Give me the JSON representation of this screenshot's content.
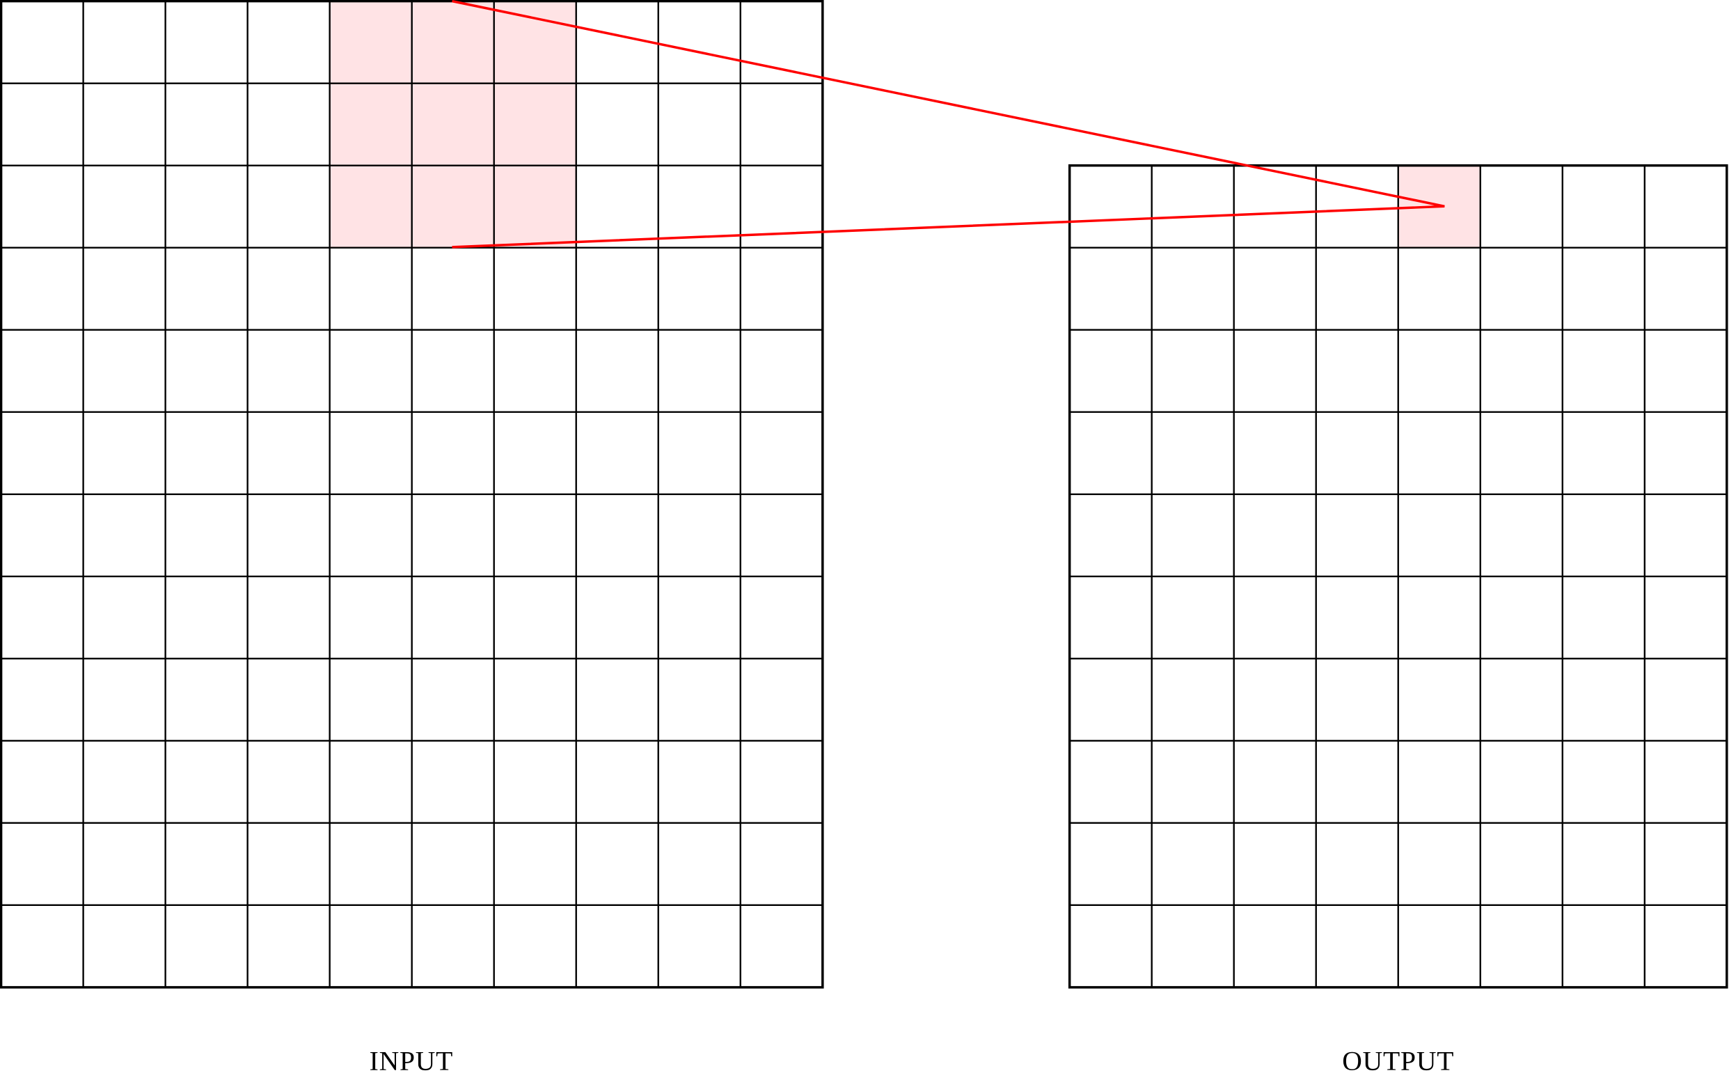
{
  "input": {
    "label": "INPUT"
  },
  "output": {
    "label": "OUTPUT"
  }
}
